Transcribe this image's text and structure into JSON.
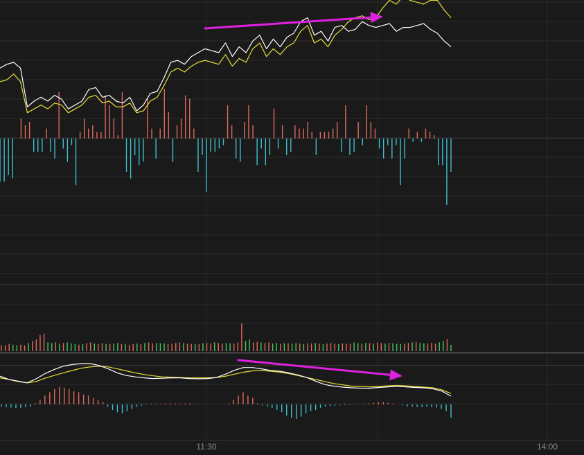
{
  "chart_data": {
    "type": "line",
    "x_ticks": [
      "11:30",
      "14:00"
    ],
    "colors": {
      "background": "#1a1a1a",
      "grid": "#2c2c2c",
      "panel_border": "#3a3a3a",
      "white_line": "#ffffff",
      "yellow_line": "#e8e03a",
      "red_bar": "#e06a5e",
      "cyan_bar": "#3ec1cf",
      "green_bar": "#45c85a",
      "arrow": "#e020e0"
    },
    "main": {
      "white": [
        0.44,
        0.48,
        0.5,
        0.44,
        0.04,
        0.1,
        0.14,
        0.1,
        0.16,
        0.12,
        0.02,
        0.06,
        0.1,
        0.22,
        0.24,
        0.14,
        0.16,
        0.1,
        0.08,
        0.14,
        0.0,
        0.06,
        0.18,
        0.2,
        0.34,
        0.5,
        0.52,
        0.48,
        0.56,
        0.6,
        0.64,
        0.62,
        0.6,
        0.7,
        0.56,
        0.66,
        0.6,
        0.72,
        0.78,
        0.64,
        0.74,
        0.66,
        0.76,
        0.8,
        0.92,
        0.96,
        0.78,
        0.82,
        0.72,
        0.86,
        0.88,
        0.82,
        0.84,
        0.92,
        0.88,
        0.86,
        0.88,
        0.9,
        0.82,
        0.86,
        0.86,
        0.88,
        0.9,
        0.84,
        0.8,
        0.72,
        0.66
      ],
      "yellow": [
        0.3,
        0.32,
        0.38,
        0.3,
        -0.02,
        0.02,
        0.06,
        0.02,
        0.08,
        0.06,
        -0.02,
        0.02,
        0.06,
        0.14,
        0.16,
        0.08,
        0.1,
        0.04,
        0.04,
        0.08,
        -0.02,
        0.0,
        0.1,
        0.14,
        0.26,
        0.4,
        0.44,
        0.4,
        0.46,
        0.5,
        0.52,
        0.5,
        0.48,
        0.58,
        0.46,
        0.54,
        0.5,
        0.64,
        0.7,
        0.56,
        0.64,
        0.58,
        0.66,
        0.7,
        0.82,
        0.88,
        0.7,
        0.74,
        0.66,
        0.78,
        0.84,
        0.92,
        0.96,
        0.98,
        0.94,
        0.96,
        1.06,
        1.14,
        1.1,
        1.18,
        1.14,
        1.12,
        1.1,
        1.14,
        1.14,
        1.04,
        0.96
      ],
      "flow": [
        -1.3,
        -1.3,
        -1.1,
        -1.2,
        0.0,
        0.6,
        0.4,
        0.5,
        -0.4,
        -0.4,
        -0.4,
        0.3,
        -0.4,
        -0.6,
        1.4,
        -0.3,
        -0.7,
        -0.2,
        -1.4,
        0.2,
        0.6,
        0.3,
        0.4,
        0.2,
        0.2,
        1.3,
        1.0,
        0.6,
        0.1,
        1.4,
        -1.0,
        -1.2,
        -0.5,
        -0.8,
        -0.7,
        1.2,
        0.3,
        -0.6,
        0.3,
        1.5,
        0.8,
        -0.7,
        0.4,
        0.6,
        1.3,
        1.2,
        0.3,
        -1.0,
        -0.5,
        -1.6,
        -0.4,
        -0.4,
        -0.3,
        -0.2,
        1.0,
        0.4,
        -0.6,
        -0.7,
        0.5,
        1.0,
        0.4,
        -0.8,
        -0.3,
        -0.8,
        -0.5,
        0.9,
        -0.3,
        0.4,
        -0.5,
        -0.4,
        0.4,
        0.3,
        0.3,
        0.5,
        0.2,
        -0.5,
        0.2,
        0.2,
        0.2,
        0.3,
        0.5,
        -0.4,
        1.0,
        -0.5,
        -0.4,
        0.5,
        -0.2,
        1.0,
        0.5,
        0.3,
        -0.3,
        -0.6,
        -0.2,
        -0.6,
        -0.2,
        -1.4,
        -0.6,
        0.3,
        -0.1,
        0.2,
        -0.1,
        0.3,
        0.2,
        0.1,
        -0.8,
        -0.8,
        -2.0,
        -1.0
      ]
    },
    "volume": [
      0.2,
      0.2,
      0.25,
      0.22,
      0.2,
      0.22,
      0.2,
      0.28,
      0.35,
      0.4,
      0.55,
      0.6,
      0.3,
      0.28,
      0.3,
      0.25,
      0.28,
      0.3,
      0.27,
      0.25,
      0.22,
      0.24,
      0.28,
      0.3,
      0.26,
      0.24,
      0.28,
      0.25,
      0.24,
      0.26,
      0.28,
      0.25,
      0.24,
      0.22,
      0.25,
      0.26,
      0.24,
      0.28,
      0.3,
      0.26,
      0.28,
      0.27,
      0.26,
      0.24,
      0.25,
      0.28,
      0.3,
      0.28,
      0.26,
      0.25,
      0.24,
      0.25,
      0.27,
      0.28,
      0.26,
      0.3,
      0.28,
      0.26,
      0.28,
      0.27,
      0.26,
      0.3,
      0.95,
      0.35,
      0.4,
      0.3,
      0.32,
      0.3,
      0.28,
      0.3,
      0.26,
      0.28,
      0.25,
      0.27,
      0.26,
      0.25,
      0.28,
      0.26,
      0.24,
      0.27,
      0.26,
      0.28,
      0.25,
      0.24,
      0.26,
      0.28,
      0.25,
      0.24,
      0.27,
      0.26,
      0.25,
      0.3,
      0.28,
      0.25,
      0.28,
      0.27,
      0.26,
      0.3,
      0.28,
      0.26,
      0.28,
      0.27,
      0.25,
      0.24,
      0.26,
      0.28,
      0.3,
      0.32,
      0.28,
      0.27,
      0.26,
      0.28,
      0.25,
      0.3,
      0.35,
      0.42,
      0.22
    ],
    "volume_colors": "rrrggrrgrrrrggrgrgggrgrrgrrgrggrgrrgrgrrgggrrrrgrrgrgrrgrrggrrrggrrgrrggrgrggrgrrgrgrrrgrrrggrgrgrrgrgggrrgrggrrrggrgrgg",
    "macd": {
      "dif": [
        0.6,
        0.5,
        0.45,
        0.4,
        0.52,
        0.68,
        0.8,
        0.9,
        0.95,
        0.98,
        0.98,
        0.92,
        0.82,
        0.7,
        0.62,
        0.58,
        0.55,
        0.53,
        0.54,
        0.55,
        0.55,
        0.53,
        0.52,
        0.53,
        0.56,
        0.66,
        0.78,
        0.86,
        0.86,
        0.82,
        0.77,
        0.75,
        0.7,
        0.64,
        0.56,
        0.45,
        0.35,
        0.3,
        0.27,
        0.25,
        0.24,
        0.24,
        0.26,
        0.28,
        0.3,
        0.28,
        0.26,
        0.25,
        0.22,
        0.15,
        0.0
      ],
      "dea": [
        0.55,
        0.5,
        0.44,
        0.4,
        0.44,
        0.54,
        0.62,
        0.7,
        0.77,
        0.84,
        0.88,
        0.9,
        0.88,
        0.82,
        0.76,
        0.7,
        0.65,
        0.61,
        0.58,
        0.57,
        0.56,
        0.55,
        0.55,
        0.55,
        0.56,
        0.6,
        0.66,
        0.72,
        0.76,
        0.77,
        0.75,
        0.72,
        0.68,
        0.62,
        0.56,
        0.5,
        0.44,
        0.38,
        0.34,
        0.3,
        0.29,
        0.28,
        0.29,
        0.31,
        0.32,
        0.31,
        0.29,
        0.27,
        0.25,
        0.19,
        0.08
      ],
      "hist": [
        -0.1,
        -0.12,
        -0.14,
        -0.16,
        -0.15,
        -0.12,
        -0.1,
        0.05,
        0.2,
        0.4,
        0.55,
        0.7,
        0.8,
        0.76,
        0.7,
        0.6,
        0.55,
        0.45,
        0.4,
        0.3,
        0.2,
        0.1,
        -0.1,
        -0.25,
        -0.35,
        -0.4,
        -0.3,
        -0.2,
        -0.1,
        -0.05,
        0.02,
        0.03,
        0.02,
        0.03,
        0.04,
        0.05,
        0.04,
        0.03,
        0.04,
        0.05,
        0.02,
        0.0,
        0.0,
        0.0,
        0.0,
        0.0,
        0.0,
        0.05,
        0.2,
        0.4,
        0.55,
        0.4,
        0.3,
        0.05,
        -0.05,
        -0.1,
        -0.15,
        -0.25,
        -0.35,
        -0.5,
        -0.6,
        -0.65,
        -0.55,
        -0.4,
        -0.3,
        -0.25,
        -0.15,
        -0.1,
        -0.08,
        -0.05,
        -0.04,
        -0.03,
        -0.02,
        -0.01,
        0.01,
        0.02,
        0.04,
        0.08,
        0.1,
        0.1,
        0.08,
        0.04,
        0.0,
        -0.04,
        -0.08,
        -0.1,
        -0.12,
        -0.12,
        -0.1,
        -0.12,
        -0.14,
        -0.2,
        -0.3,
        -0.6
      ]
    },
    "arrows": [
      {
        "panel": "main",
        "direction": "up"
      },
      {
        "panel": "macd",
        "direction": "down"
      }
    ]
  }
}
